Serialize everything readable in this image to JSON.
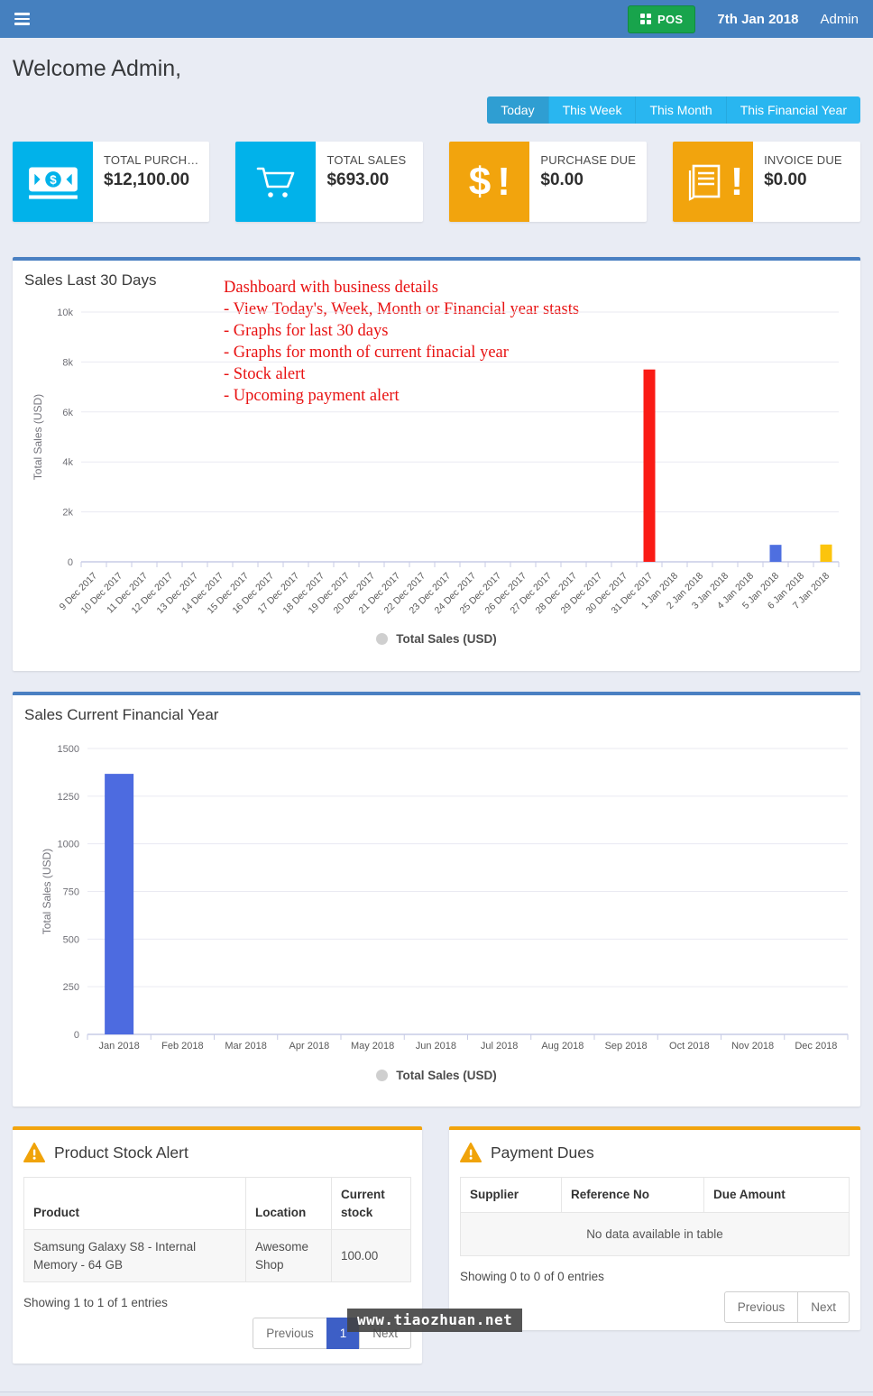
{
  "navbar": {
    "pos_label": "POS",
    "date": "7th Jan 2018",
    "user": "Admin"
  },
  "welcome": "Welcome Admin,",
  "filter_tabs": [
    {
      "label": "Today",
      "active": true
    },
    {
      "label": "This Week",
      "active": false
    },
    {
      "label": "This Month",
      "active": false
    },
    {
      "label": "This Financial Year",
      "active": false
    }
  ],
  "stat_cards": [
    {
      "label": "TOTAL PURCH…",
      "value": "$12,100.00",
      "icon": "money-bill-icon",
      "accent": "#01b2ea"
    },
    {
      "label": "TOTAL SALES",
      "value": "$693.00",
      "icon": "cart-icon",
      "accent": "#01b2ea"
    },
    {
      "label": "PURCHASE DUE",
      "value": "$0.00",
      "icon": "dollar-exclamation-icon",
      "accent": "#f2a40d"
    },
    {
      "label": "INVOICE DUE",
      "value": "$0.00",
      "icon": "invoice-exclamation-icon",
      "accent": "#f2a40d"
    }
  ],
  "annotation": {
    "color": "#e81212",
    "heading": "Dashboard with business details",
    "bullets": [
      "- View Today's, Week, Month or Financial year stasts",
      "- Graphs for last 30 days",
      "- Graphs for month of current finacial year",
      "- Stock alert",
      "- Upcoming payment alert"
    ]
  },
  "chart_data": [
    {
      "type": "bar",
      "title": "Sales Last 30 Days",
      "xlabel": "",
      "ylabel": "Total Sales (USD)",
      "legend": [
        "Total Sales (USD)"
      ],
      "legend_position": "bottom",
      "legend_marker_color": "#cfcfcf",
      "grid": true,
      "ylim": [
        0,
        10000
      ],
      "yticks": [
        {
          "v": 0,
          "label": "0"
        },
        {
          "v": 2000,
          "label": "2k"
        },
        {
          "v": 4000,
          "label": "4k"
        },
        {
          "v": 6000,
          "label": "6k"
        },
        {
          "v": 8000,
          "label": "8k"
        },
        {
          "v": 10000,
          "label": "10k"
        }
      ],
      "categories": [
        "9 Dec 2017",
        "10 Dec 2017",
        "11 Dec 2017",
        "12 Dec 2017",
        "13 Dec 2017",
        "14 Dec 2017",
        "15 Dec 2017",
        "16 Dec 2017",
        "17 Dec 2017",
        "18 Dec 2017",
        "19 Dec 2017",
        "20 Dec 2017",
        "21 Dec 2017",
        "22 Dec 2017",
        "23 Dec 2017",
        "24 Dec 2017",
        "25 Dec 2017",
        "26 Dec 2017",
        "27 Dec 2017",
        "28 Dec 2017",
        "29 Dec 2017",
        "30 Dec 2017",
        "31 Dec 2017",
        "1 Jan 2018",
        "2 Jan 2018",
        "3 Jan 2018",
        "4 Jan 2018",
        "5 Jan 2018",
        "6 Jan 2018",
        "7 Jan 2018"
      ],
      "values": [
        0,
        0,
        0,
        0,
        0,
        0,
        0,
        0,
        0,
        0,
        0,
        0,
        0,
        0,
        0,
        0,
        0,
        0,
        0,
        0,
        0,
        0,
        7700,
        0,
        0,
        0,
        0,
        680,
        0,
        693
      ],
      "bar_colors": {
        "31 Dec 2017": "#fa1b15",
        "5 Jan 2018": "#4e6fe0",
        "7 Jan 2018": "#fcc40d"
      },
      "rotated_x_labels": true
    },
    {
      "type": "bar",
      "title": "Sales Current Financial Year",
      "xlabel": "",
      "ylabel": "Total Sales (USD)",
      "legend": [
        "Total Sales (USD)"
      ],
      "legend_position": "bottom",
      "legend_marker_color": "#cfcfcf",
      "grid": true,
      "ylim": [
        0,
        1500
      ],
      "yticks": [
        {
          "v": 0,
          "label": "0"
        },
        {
          "v": 250,
          "label": "250"
        },
        {
          "v": 500,
          "label": "500"
        },
        {
          "v": 750,
          "label": "750"
        },
        {
          "v": 1000,
          "label": "1000"
        },
        {
          "v": 1250,
          "label": "1250"
        },
        {
          "v": 1500,
          "label": "1500"
        }
      ],
      "categories": [
        "Jan 2018",
        "Feb 2018",
        "Mar 2018",
        "Apr 2018",
        "May 2018",
        "Jun 2018",
        "Jul 2018",
        "Aug 2018",
        "Sep 2018",
        "Oct 2018",
        "Nov 2018",
        "Dec 2018"
      ],
      "values": [
        1367,
        0,
        0,
        0,
        0,
        0,
        0,
        0,
        0,
        0,
        0,
        0
      ],
      "bar_colors": {
        "Jan 2018": "#4d6be0"
      },
      "rotated_x_labels": false
    }
  ],
  "stock_panel": {
    "title": "Product Stock Alert",
    "icon": "warning-icon",
    "accent": "#f2a40d",
    "table": {
      "headers": [
        "Product",
        "Location",
        "Current stock"
      ],
      "rows": [
        [
          "Samsung Galaxy S8 - Internal Memory - 64 GB",
          "Awesome Shop",
          "100.00"
        ]
      ]
    },
    "summary": "Showing 1 to 1 of 1 entries",
    "pagination": {
      "previous": "Previous",
      "pages": [
        {
          "label": "1",
          "active": true
        }
      ],
      "next": "Next"
    }
  },
  "dues_panel": {
    "title": "Payment Dues",
    "icon": "warning-icon",
    "accent": "#f2a40d",
    "table": {
      "headers": [
        "Supplier",
        "Reference No",
        "Due Amount"
      ],
      "empty_text": "No data available in table"
    },
    "summary": "Showing 0 to 0 of 0 entries",
    "pagination": {
      "previous": "Previous",
      "pages": [],
      "next": "Next"
    }
  },
  "watermark": "www.tiaozhuan.net"
}
